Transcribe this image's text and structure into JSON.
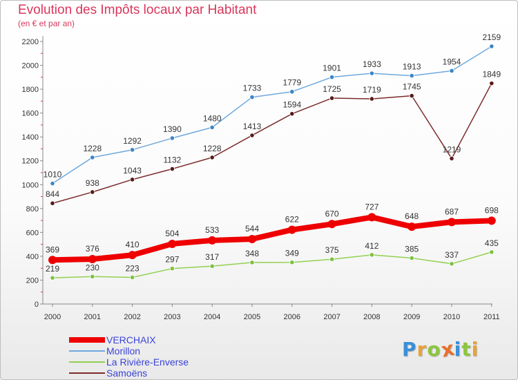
{
  "header": {
    "title": "Evolution des Impôts locaux par Habitant",
    "subtitle": "(en € et par an)"
  },
  "logo": {
    "text": "Proxiti",
    "letters": [
      {
        "ch": "P",
        "color": "#3a8fd8"
      },
      {
        "ch": "r",
        "color": "#e8a23a"
      },
      {
        "ch": "o",
        "color": "#8cc63f"
      },
      {
        "ch": "x",
        "color": "#e8702a"
      },
      {
        "ch": "i",
        "color": "#3a8fd8"
      },
      {
        "ch": "t",
        "color": "#8cc63f"
      },
      {
        "ch": "i",
        "color": "#e8a23a"
      }
    ]
  },
  "chart_data": {
    "type": "line",
    "title": "Evolution des Impôts locaux par Habitant",
    "subtitle": "(en € et par an)",
    "xlabel": "",
    "ylabel": "",
    "categories": [
      "2000",
      "2001",
      "2002",
      "2003",
      "2004",
      "2005",
      "2006",
      "2007",
      "2008",
      "2009",
      "2010",
      "2011"
    ],
    "ylim": [
      0,
      2200
    ],
    "yticks": [
      0,
      200,
      400,
      600,
      800,
      1000,
      1200,
      1400,
      1600,
      1800,
      2000,
      2200
    ],
    "grid": false,
    "legend_position": "bottom-left",
    "series": [
      {
        "name": "VERCHAIX",
        "color": "#ee0000",
        "values": [
          369,
          376,
          410,
          504,
          533,
          544,
          622,
          670,
          727,
          648,
          687,
          698
        ]
      },
      {
        "name": "Morillon",
        "color": "#6fa8dc",
        "values": [
          1010,
          1228,
          1292,
          1390,
          1480,
          1733,
          1779,
          1901,
          1933,
          1913,
          1954,
          2159
        ]
      },
      {
        "name": "La Rivière-Enverse",
        "color": "#92d050",
        "values": [
          219,
          230,
          223,
          297,
          317,
          348,
          349,
          375,
          412,
          385,
          337,
          435
        ]
      },
      {
        "name": "Samoëns",
        "color": "#7b2a2a",
        "values": [
          844,
          938,
          1043,
          1132,
          1228,
          1413,
          1594,
          1725,
          1719,
          1745,
          1219,
          1849
        ]
      }
    ]
  }
}
